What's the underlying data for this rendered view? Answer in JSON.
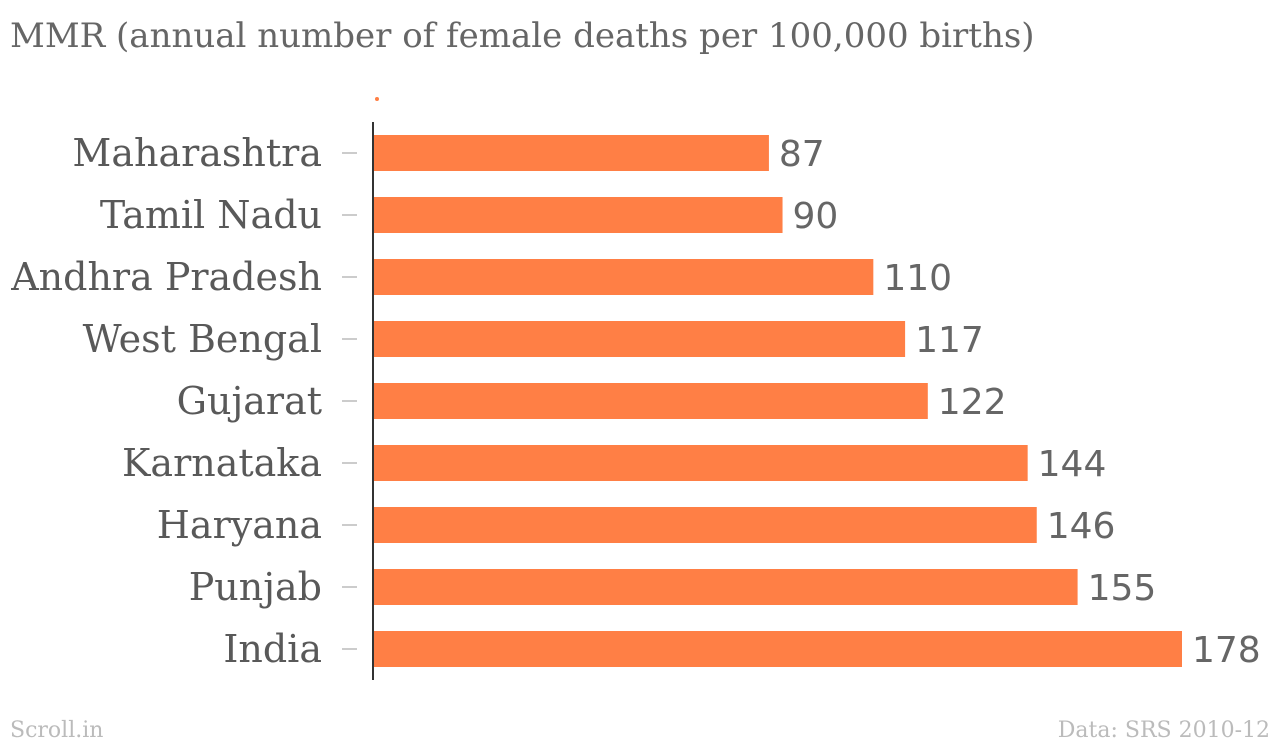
{
  "chart_data": {
    "type": "bar",
    "orientation": "horizontal",
    "title": "MMR (annual number of female deaths per 100,000 births)",
    "categories": [
      "Maharashtra",
      "Tamil Nadu",
      "Andhra Pradesh",
      "West Bengal",
      "Gujarat",
      "Karnataka",
      "Haryana",
      "Punjab",
      "India"
    ],
    "values": [
      87,
      90,
      110,
      117,
      122,
      144,
      146,
      155,
      178
    ],
    "xlabel": "",
    "ylabel": "",
    "xlim": [
      0,
      178
    ],
    "grid": false,
    "data_labels": true,
    "bar_color": "#ff7f45",
    "source": "Data: SRS 2010-12",
    "credit": "Scroll.in"
  }
}
